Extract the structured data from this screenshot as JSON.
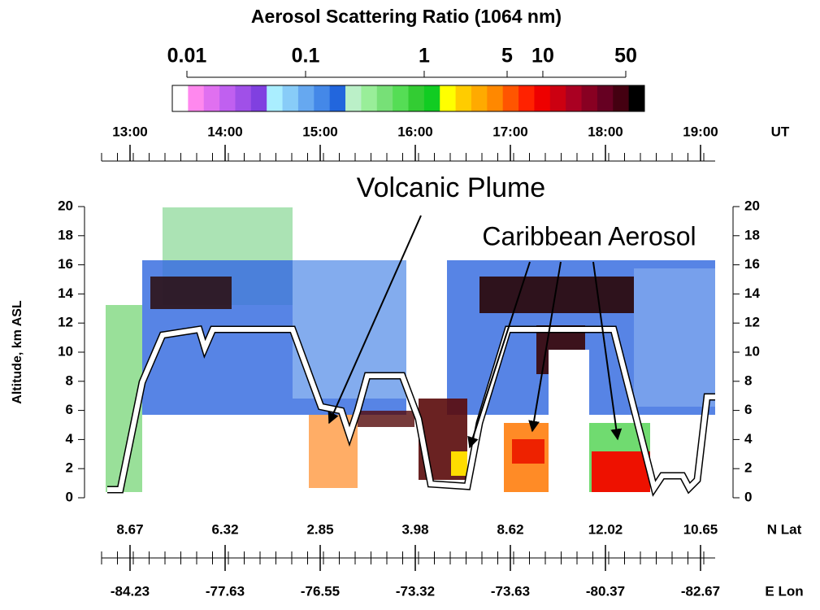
{
  "chart_data": {
    "type": "lidar-curtain",
    "title": "Aerosol Scattering Ratio (1064 nm)",
    "colorbar": {
      "scale": "log",
      "xlim": [
        0.01,
        50
      ],
      "xticks": [
        0.01,
        0.1,
        1,
        5,
        10,
        50
      ],
      "colors": [
        "#ffffff",
        "#ff88ee",
        "#e070f0",
        "#c060f0",
        "#a050e8",
        "#8040e0",
        "#aaeeff",
        "#88ccf8",
        "#66a8f0",
        "#4488e8",
        "#2266dd",
        "#bbf0c8",
        "#99ee99",
        "#77e077",
        "#55dd55",
        "#33cc33",
        "#11cc22",
        "#ffff00",
        "#ffcc00",
        "#ffaa00",
        "#ff8800",
        "#ff5500",
        "#ff2200",
        "#ee0000",
        "#cc0011",
        "#aa0022",
        "#880022",
        "#660022",
        "#440011",
        "#000000"
      ]
    },
    "time_ticks": [
      "13:00",
      "14:00",
      "15:00",
      "16:00",
      "17:00",
      "18:00",
      "19:00"
    ],
    "time_label": "UT",
    "ylabel": "Altitude, km ASL",
    "ylim": [
      0,
      20
    ],
    "yticks": [
      0,
      2,
      4,
      6,
      8,
      10,
      12,
      14,
      16,
      18,
      20
    ],
    "lat": [
      "8.67",
      "6.32",
      "2.85",
      "3.98",
      "8.62",
      "12.02",
      "10.65"
    ],
    "lat_label": "N Lat",
    "lon": [
      "-84.23",
      "-77.63",
      "-76.55",
      "-73.32",
      "-73.63",
      "-80.37",
      "-82.67"
    ],
    "lon_label": "E Lon",
    "annotations": [
      "Volcanic Plume",
      "Caribbean Aerosol"
    ]
  }
}
